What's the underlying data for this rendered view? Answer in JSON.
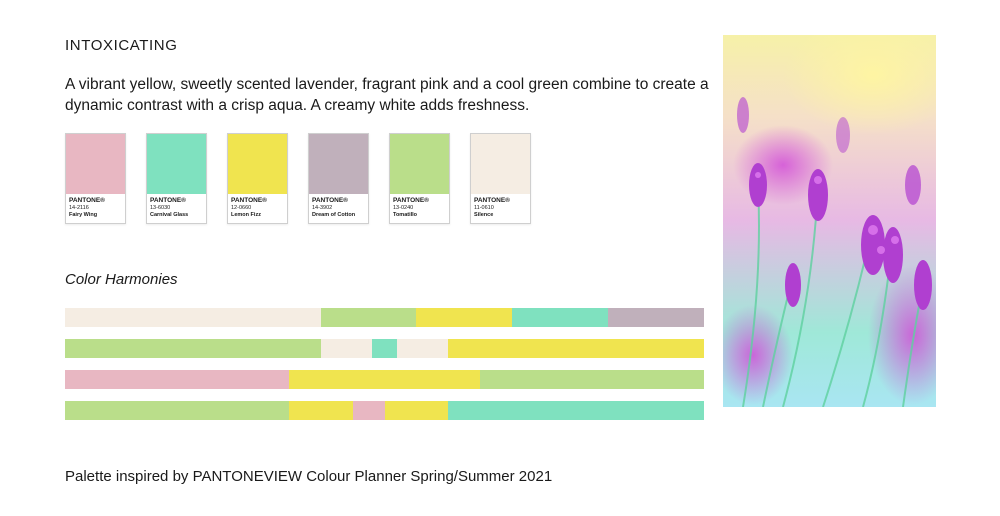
{
  "heading": "INTOXICATING",
  "description": "A vibrant yellow, sweetly scented lavender, fragrant pink and a cool green combine to create a dynamic contrast with a crisp aqua. A creamy white adds freshness.",
  "swatches": [
    {
      "brand": "PANTONE®",
      "code": "14-2116",
      "name": "Fairy Wing",
      "color": "#e8b7c2"
    },
    {
      "brand": "PANTONE®",
      "code": "13-6030",
      "name": "Carnival Glass",
      "color": "#7fe1bf"
    },
    {
      "brand": "PANTONE®",
      "code": "12-0660",
      "name": "Lemon Fizz",
      "color": "#f0e44f"
    },
    {
      "brand": "PANTONE®",
      "code": "14-3902",
      "name": "Dream of Cotton",
      "color": "#c0b0bb"
    },
    {
      "brand": "PANTONE®",
      "code": "13-0240",
      "name": "Tomatillo",
      "color": "#bade8a"
    },
    {
      "brand": "PANTONE®",
      "code": "11-0610",
      "name": "Silence",
      "color": "#f5ede3"
    }
  ],
  "harmonies_title": "Color Harmonies",
  "harmonies": [
    [
      {
        "color": "#f5ede3",
        "share": 0.4
      },
      {
        "color": "#bade8a",
        "share": 0.15
      },
      {
        "color": "#f0e44f",
        "share": 0.15
      },
      {
        "color": "#7fe1bf",
        "share": 0.15
      },
      {
        "color": "#c0b0bb",
        "share": 0.15
      }
    ],
    [
      {
        "color": "#bade8a",
        "share": 0.4
      },
      {
        "color": "#f5ede3",
        "share": 0.08
      },
      {
        "color": "#7fe1bf",
        "share": 0.04
      },
      {
        "color": "#f5ede3",
        "share": 0.08
      },
      {
        "color": "#f0e44f",
        "share": 0.4
      }
    ],
    [
      {
        "color": "#e8b7c2",
        "share": 0.35
      },
      {
        "color": "#f0e44f",
        "share": 0.3
      },
      {
        "color": "#bade8a",
        "share": 0.35
      }
    ],
    [
      {
        "color": "#bade8a",
        "share": 0.35
      },
      {
        "color": "#f0e44f",
        "share": 0.1
      },
      {
        "color": "#e8b7c2",
        "share": 0.05
      },
      {
        "color": "#f0e44f",
        "share": 0.1
      },
      {
        "color": "#7fe1bf",
        "share": 0.4
      }
    ]
  ],
  "footer": "Palette inspired by PANTONEVIEW Colour Planner Spring/Summer 2021",
  "photo": {
    "subject": "lavender-flowers-photo"
  }
}
